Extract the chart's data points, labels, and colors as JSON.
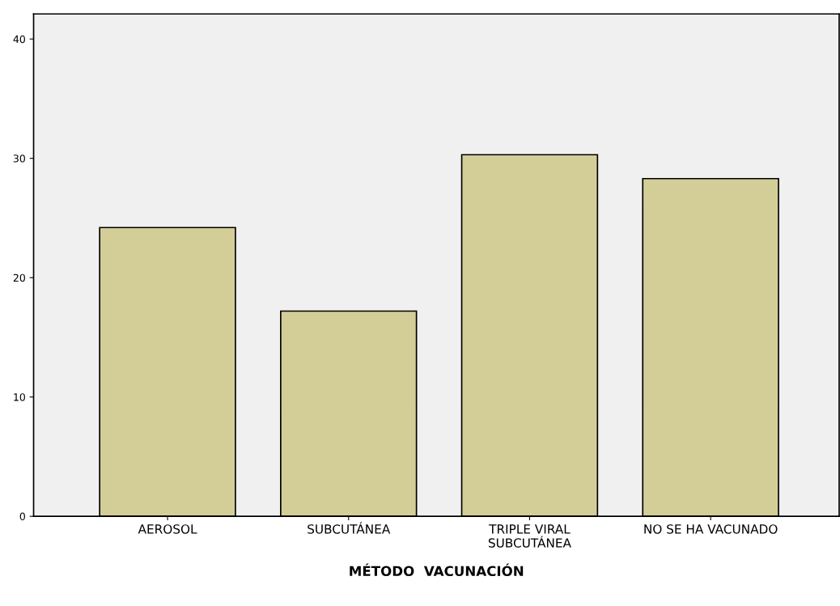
{
  "chart_data": {
    "type": "bar",
    "xlabel": "MÉTODO  VACUNACIÓN",
    "categories": [
      "AEROSOL",
      "SUBCUTÁNEA",
      "TRIPLE VIRAL\nSUBCUTÁNEA",
      "NO SE HA VACUNADO"
    ],
    "values": [
      24.2,
      17.2,
      30.3,
      28.3
    ],
    "color": "#d3ce97",
    "ylim": [
      0,
      42.1
    ],
    "yticks": [
      0,
      10,
      20,
      30,
      40
    ],
    "grid": false
  }
}
